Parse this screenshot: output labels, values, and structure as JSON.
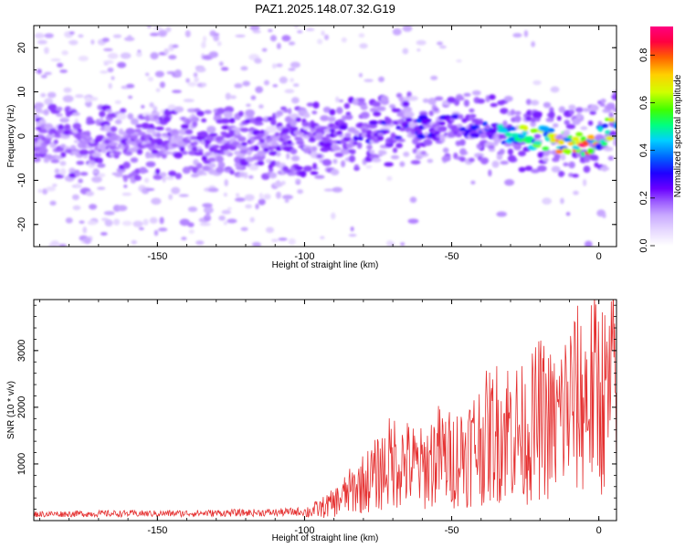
{
  "title": "PAZ1.2025.148.07.32.G19",
  "chart_data": [
    {
      "type": "heatmap",
      "xlabel": "Height of straight line (km)",
      "ylabel": "Frequency (Hz)",
      "xlim": [
        -192,
        6
      ],
      "ylim": [
        -25,
        25
      ],
      "xticks": [
        -150,
        -100,
        -50,
        0
      ],
      "xtick_labels": [
        "-150",
        "-100",
        "-50",
        "0"
      ],
      "yticks": [
        -20,
        -10,
        0,
        10,
        20
      ],
      "ytick_labels": [
        "-20",
        "-10",
        "0",
        "10",
        "20"
      ],
      "colorbar": {
        "label": "Normalized spectral amplitude",
        "range": [
          0,
          0.92
        ],
        "ticks": [
          0.0,
          0.2,
          0.4,
          0.6,
          0.8
        ],
        "tick_labels": [
          "0.0",
          "0.2",
          "0.4",
          "0.6",
          "0.8"
        ],
        "colors": [
          "#ffffff",
          "#e6d8ff",
          "#c8a8ff",
          "#9c5cff",
          "#6a00ff",
          "#2000ff",
          "#0060ff",
          "#00d0ff",
          "#00ff80",
          "#40ff00",
          "#d0ff00",
          "#ffd000",
          "#ff6000",
          "#ff0040",
          "#ff0080"
        ]
      },
      "ridge": {
        "x": [
          -192,
          -150,
          -100,
          -60,
          -40,
          -25,
          -15,
          -5,
          0,
          6
        ],
        "frequency": [
          -1,
          -2,
          -1,
          2,
          2,
          0,
          -1,
          -2,
          0,
          3
        ],
        "amplitude": [
          0.2,
          0.2,
          0.22,
          0.3,
          0.3,
          0.55,
          0.6,
          0.85,
          0.5,
          0.6
        ]
      }
    },
    {
      "type": "line",
      "xlabel": "Height of straight line (km)",
      "ylabel": "SNR (10 * v/v)",
      "xlim": [
        -192,
        6
      ],
      "ylim": [
        0,
        3900
      ],
      "xticks": [
        -150,
        -100,
        -50,
        0
      ],
      "xtick_labels": [
        "-150",
        "-100",
        "-50",
        "0"
      ],
      "yticks": [
        1000,
        2000,
        3000
      ],
      "ytick_labels": [
        "1000",
        "2000",
        "3000"
      ],
      "color": "#e53030",
      "x": [
        -192,
        -170,
        -150,
        -130,
        -110,
        -100,
        -95,
        -90,
        -85,
        -80,
        -75,
        -70,
        -65,
        -60,
        -55,
        -50,
        -45,
        -40,
        -35,
        -30,
        -25,
        -20,
        -15,
        -10,
        -5,
        0,
        3,
        6
      ],
      "y": [
        120,
        130,
        130,
        140,
        150,
        170,
        250,
        380,
        600,
        800,
        1000,
        1300,
        1200,
        1100,
        1400,
        1300,
        1500,
        1700,
        1900,
        2000,
        1800,
        2200,
        2000,
        2500,
        2600,
        2800,
        2500,
        3200
      ]
    }
  ]
}
